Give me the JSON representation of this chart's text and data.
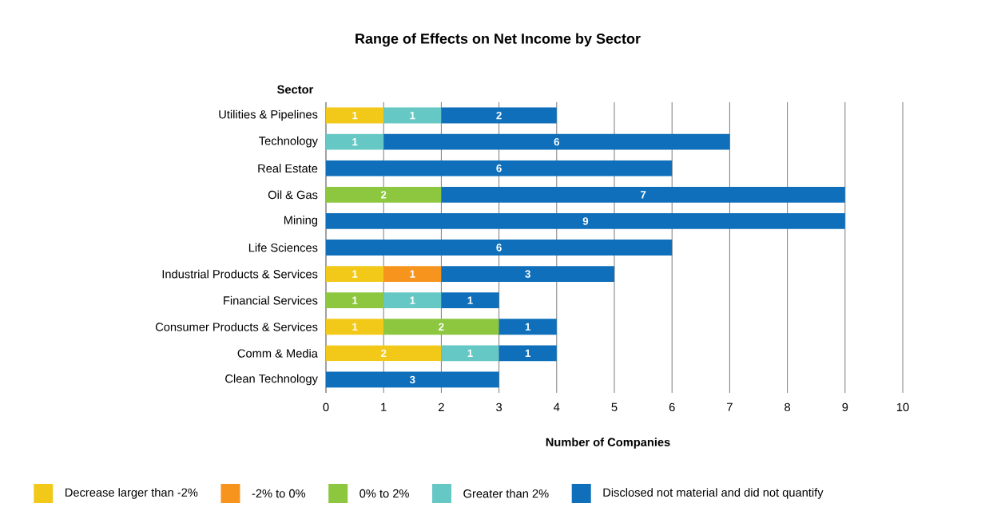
{
  "chart_data": {
    "type": "bar",
    "orientation": "horizontal",
    "stacked": true,
    "title": "Range of Effects on Net Income by Sector",
    "ylabel": "Sector",
    "xlabel": "Number of Companies",
    "categories": [
      "Utilities & Pipelines",
      "Technology",
      "Real Estate",
      "Oil & Gas",
      "Mining",
      "Life Sciences",
      "Industrial Products & Services",
      "Financial Services",
      "Consumer Products & Services",
      "Comm & Media",
      "Clean Technology"
    ],
    "series": [
      {
        "name": "Decrease larger than -2%",
        "color": "#f2c919",
        "values": [
          1,
          null,
          null,
          null,
          null,
          null,
          1,
          null,
          1,
          2,
          null
        ]
      },
      {
        "name": "-2% to 0%",
        "color": "#f7941d",
        "values": [
          null,
          null,
          null,
          null,
          null,
          null,
          1,
          null,
          null,
          null,
          null
        ]
      },
      {
        "name": "0% to 2%",
        "color": "#8dc63f",
        "values": [
          null,
          null,
          null,
          2,
          null,
          null,
          null,
          1,
          2,
          null,
          null
        ]
      },
      {
        "name": "Greater than 2%",
        "color": "#66c8c5",
        "values": [
          1,
          1,
          null,
          null,
          null,
          null,
          null,
          1,
          null,
          1,
          null
        ]
      },
      {
        "name": "Disclosed not material and did not quantify",
        "color": "#0f6fba",
        "values": [
          2,
          6,
          6,
          7,
          9,
          6,
          3,
          1,
          1,
          1,
          3
        ]
      }
    ],
    "xlim": [
      0,
      10
    ],
    "xticks": [
      0,
      1,
      2,
      3,
      4,
      5,
      6,
      7,
      8,
      9,
      10
    ],
    "grid": "x",
    "data_labels": true,
    "legend": "bottom"
  }
}
